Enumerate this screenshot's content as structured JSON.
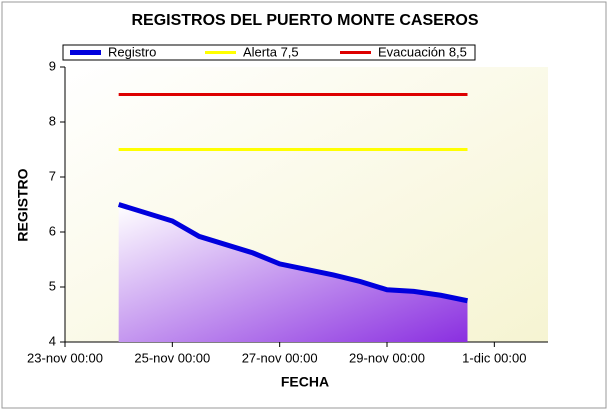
{
  "chart_data": {
    "type": "area",
    "title": "REGISTROS DEL PUERTO MONTE CASEROS",
    "x_label": "FECHA",
    "y_label": "REGISTRO",
    "xlim": [
      "23-nov 00:00",
      "2-dic 00:00"
    ],
    "xticks": [
      "23-nov 00:00",
      "25-nov 00:00",
      "27-nov 00:00",
      "29-nov 00:00",
      "1-dic 00:00"
    ],
    "ylim": [
      4,
      9
    ],
    "yticks": [
      4,
      5,
      6,
      7,
      8,
      9
    ],
    "series": [
      {
        "name": "Registro",
        "color": "#0000dd",
        "x": [
          "24-nov 00:00",
          "25-nov 00:00",
          "25-nov 12:00",
          "26-nov 12:00",
          "27-nov 00:00",
          "28-nov 00:00",
          "28-nov 12:00",
          "29-nov 00:00",
          "29-nov 12:00",
          "30-nov 00:00",
          "30-nov 12:00"
        ],
        "values": [
          6.5,
          6.2,
          5.92,
          5.62,
          5.42,
          5.22,
          5.1,
          4.95,
          4.92,
          4.85,
          4.75
        ]
      },
      {
        "name": "Alerta 7,5",
        "color": "#ffff00",
        "x": [
          "24-nov 00:00",
          "30-nov 12:00"
        ],
        "values": [
          7.5,
          7.5
        ]
      },
      {
        "name": "Evacuación 8,5",
        "color": "#dd0000",
        "x": [
          "24-nov 00:00",
          "30-nov 12:00"
        ],
        "values": [
          8.5,
          8.5
        ]
      }
    ]
  }
}
